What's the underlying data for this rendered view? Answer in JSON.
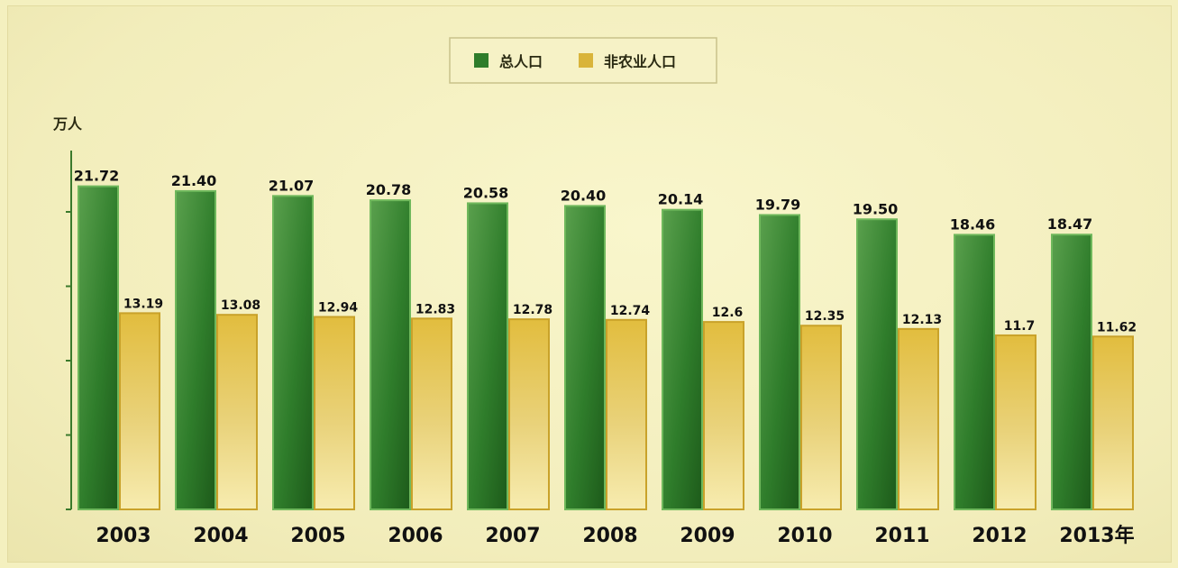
{
  "chart_data": {
    "type": "bar",
    "categories": [
      "2003",
      "2004",
      "2005",
      "2006",
      "2007",
      "2008",
      "2009",
      "2010",
      "2011",
      "2012",
      "2013年"
    ],
    "series": [
      {
        "name": "总人口",
        "values": [
          21.72,
          21.4,
          21.07,
          20.78,
          20.58,
          20.4,
          20.14,
          19.79,
          19.5,
          18.46,
          18.47
        ],
        "labels": [
          "21.72",
          "21.40",
          "21.07",
          "20.78",
          "20.58",
          "20.40",
          "20.14",
          "19.79",
          "19.50",
          "18.46",
          "18.47"
        ],
        "color": "#2e7a2a"
      },
      {
        "name": "非农业人口",
        "values": [
          13.19,
          13.08,
          12.94,
          12.83,
          12.78,
          12.74,
          12.6,
          12.35,
          12.13,
          11.7,
          11.62
        ],
        "labels": [
          "13.19",
          "13.08",
          "12.94",
          "12.83",
          "12.78",
          "12.74",
          "12.6",
          "12.35",
          "12.13",
          "11.7",
          "11.62"
        ],
        "color": "#d9b43a"
      }
    ],
    "ylabel": "万人",
    "ylim": [
      0,
      24
    ],
    "yticks": [
      0,
      5,
      10,
      15,
      20
    ],
    "grid": false,
    "legend": "top-center"
  }
}
